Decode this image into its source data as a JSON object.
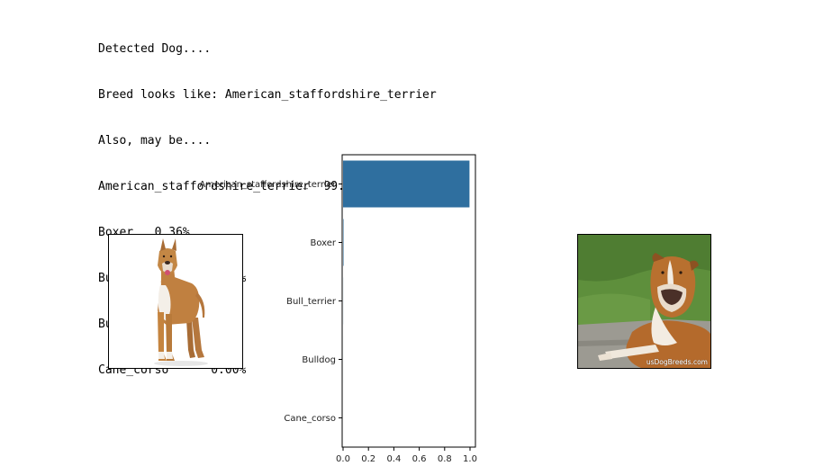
{
  "output": {
    "lines": [
      "Detected Dog....",
      "Breed looks like: American_staffordshire_terrier",
      "Also, may be....",
      "American_staffordshire_terrier  99.57%",
      "Boxer   0.36%",
      "Bull_terrier    0.05%",
      "Bulldog 0.01%",
      "Cane_corso      0.00%"
    ]
  },
  "images": {
    "query_image_icon": "standing-dog-photo",
    "match_image_icon": "lying-dog-photo",
    "watermark": "usDogBreeds.com"
  },
  "chart_data": {
    "type": "bar",
    "orientation": "horizontal",
    "categories": [
      "American_staffordshire_terrier",
      "Boxer",
      "Bull_terrier",
      "Bulldog",
      "Cane_corso"
    ],
    "values": [
      0.9957,
      0.0036,
      0.0005,
      0.0001,
      0.0
    ],
    "xlim": [
      0,
      1.0
    ],
    "xticks": [
      "0.0",
      "0.2",
      "0.4",
      "0.6",
      "0.8",
      "1.0"
    ],
    "title": "",
    "xlabel": "",
    "ylabel": "",
    "bar_color": "#2f6f9f",
    "grid": false,
    "legend": "none"
  }
}
